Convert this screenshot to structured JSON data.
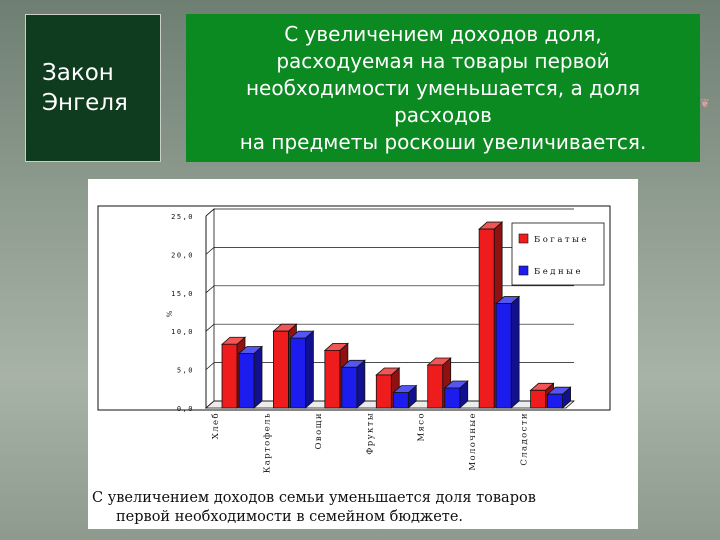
{
  "slide": {
    "title_lines": [
      "Закон",
      "Энгеля"
    ],
    "statement": "С увеличением доходов доля, расходуемая на товары первой необходимости уменьшается, а доля расходов на предметы роскоши увеличивается.",
    "statement_lines": [
      "С увеличением доходов доля,",
      "расходуемая на товары первой",
      "необходимости уменьшается, а доля",
      "расходов",
      "на предметы роскоши увеличивается."
    ],
    "caption_lines": [
      "С увеличением доходов семьи уменьшается доля товаров",
      "первой необходимости в семейном бюджете."
    ]
  },
  "chart_data": {
    "type": "bar",
    "categories": [
      "Хлеб",
      "Картофель",
      "Овощи",
      "Фрукты",
      "Мясо",
      "Молочные",
      "Сладости"
    ],
    "series": [
      {
        "name": "Богатые",
        "color": "#ee1c1c",
        "values": [
          8.3,
          10.0,
          7.5,
          4.3,
          5.6,
          23.3,
          2.3
        ]
      },
      {
        "name": "Бедные",
        "color": "#1c1cee",
        "values": [
          7.1,
          9.1,
          5.3,
          2.0,
          2.6,
          13.6,
          1.8
        ]
      }
    ],
    "ylabel": "%",
    "ylim": [
      0,
      25
    ],
    "yticks": [
      "0,0",
      "5,0",
      "10,0",
      "15,0",
      "20,0",
      "25,0"
    ],
    "legend_position": "top-right",
    "grid": true
  }
}
